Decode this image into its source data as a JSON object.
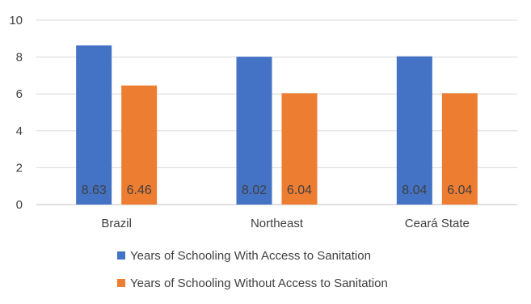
{
  "chart_data": {
    "type": "bar",
    "title": "",
    "xlabel": "",
    "ylabel": "",
    "categories": [
      "Brazil",
      "Northeast",
      "Ceará State"
    ],
    "series": [
      {
        "name": "Years of Schooling With Access to Sanitation",
        "values": [
          8.63,
          8.02,
          8.04
        ],
        "labels": [
          "8.63",
          "8.02",
          "8.04"
        ],
        "color": "#4472C4"
      },
      {
        "name": "Years of Schooling Without Access to Sanitation",
        "values": [
          6.46,
          6.04,
          6.04
        ],
        "labels": [
          "6.46",
          "6.04",
          "6.04"
        ],
        "color": "#ED7D31"
      }
    ],
    "ylim": [
      0,
      10
    ],
    "yticks": [
      0,
      2,
      4,
      6,
      8,
      10
    ],
    "grid": true,
    "legend_position": "bottom"
  }
}
